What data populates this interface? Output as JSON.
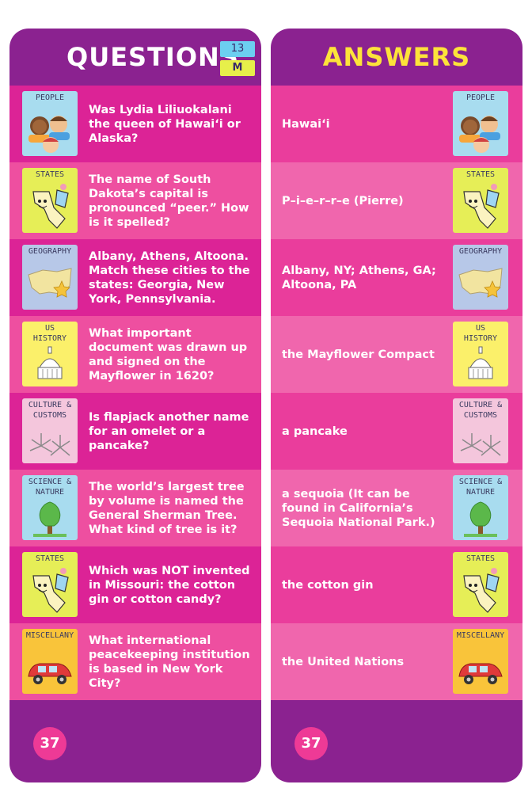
{
  "questions_card": {
    "title": "QUESTIONS",
    "level_badge": "13",
    "difficulty_badge": "M",
    "page_number": "37",
    "rows": [
      {
        "category": "PEOPLE",
        "icon": "people-icon",
        "text": "Was Lydia Liliuokalani the queen of Hawai‘i or Alaska?"
      },
      {
        "category": "STATES",
        "icon": "states-icon",
        "text": "The name of South Dakota’s capital is pronounced “peer.” How is it spelled?"
      },
      {
        "category": "GEOGRAPHY",
        "icon": "geography-icon",
        "text": "Albany, Athens, Altoona. Match these cities to the states: Georgia, New York, Pennsylvania."
      },
      {
        "category": "US\nHISTORY",
        "icon": "us-history-icon",
        "text": "What important document was drawn up and signed on the Mayflower in 1620?"
      },
      {
        "category": "CULTURE &\nCUSTOMS",
        "icon": "culture-customs-icon",
        "text": "Is flapjack another name for an omelet or a pancake?"
      },
      {
        "category": "SCIENCE &\nNATURE",
        "icon": "science-nature-icon",
        "text": "The world’s largest tree by volume is named the General Sherman Tree. What kind of tree is it?"
      },
      {
        "category": "STATES",
        "icon": "states-icon",
        "text": "Which was NOT invented in Missouri: the cotton gin or cotton candy?"
      },
      {
        "category": "MISCELLANY",
        "icon": "miscellany-icon",
        "text": "What international peacekeeping institution is based in New York City?"
      }
    ]
  },
  "answers_card": {
    "title": "ANSWERS",
    "page_number": "37",
    "rows": [
      {
        "category": "PEOPLE",
        "icon": "people-icon",
        "text": "Hawai‘i"
      },
      {
        "category": "STATES",
        "icon": "states-icon",
        "text": "P–i–e–r–r–e (Pierre)"
      },
      {
        "category": "GEOGRAPHY",
        "icon": "geography-icon",
        "text": "Albany, NY; Athens, GA; Altoona, PA"
      },
      {
        "category": "US\nHISTORY",
        "icon": "us-history-icon",
        "text": "the Mayflower Compact"
      },
      {
        "category": "CULTURE &\nCUSTOMS",
        "icon": "culture-customs-icon",
        "text": "a pancake"
      },
      {
        "category": "SCIENCE &\nNATURE",
        "icon": "science-nature-icon",
        "text": "a sequoia (It can be found in California’s Sequoia National Park.)"
      },
      {
        "category": "STATES",
        "icon": "states-icon",
        "text": "the cotton gin"
      },
      {
        "category": "MISCELLANY",
        "icon": "miscellany-icon",
        "text": "the United Nations"
      }
    ]
  },
  "colors": {
    "card_purple": "#8b2290",
    "row_dark": "#dc2396",
    "row_light": "#ee4fa0",
    "answers_title": "#fde33a",
    "badge_blue": "#6ccff0",
    "badge_yellow": "#e7ef4a"
  }
}
